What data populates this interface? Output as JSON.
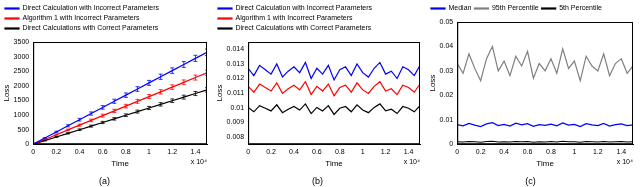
{
  "chart_data": [
    {
      "type": "line",
      "title": "(a)",
      "x_label": "Time",
      "y_label": "Loss",
      "annotations": [
        "x 10⁴"
      ],
      "grid": false,
      "legend": "top",
      "xlim": [
        0,
        1.5
      ],
      "xticks": [
        0,
        0.2,
        0.4,
        0.6,
        0.8,
        1,
        1.2,
        1.4
      ],
      "ylim": [
        0,
        3500
      ],
      "yticks": [
        0,
        500,
        1000,
        1500,
        2000,
        2500,
        3000,
        3500
      ],
      "x": [
        0,
        0.1,
        0.2,
        0.3,
        0.4,
        0.5,
        0.6,
        0.7,
        0.8,
        0.9,
        1,
        1.1,
        1.2,
        1.3,
        1.4,
        1.5
      ],
      "series": [
        {
          "name": "Direct Calculation with Incorrect Parameters",
          "color": "#0000ff",
          "values": [
            0,
            210,
            420,
            630,
            840,
            1050,
            1260,
            1470,
            1680,
            1890,
            2100,
            2310,
            2520,
            2730,
            2940,
            3150
          ],
          "errors": [
            0,
            15,
            25,
            35,
            45,
            55,
            60,
            70,
            75,
            80,
            85,
            90,
            95,
            100,
            105,
            110
          ]
        },
        {
          "name": "Algorithm 1 with Incorrect Parameters",
          "color": "#ff0000",
          "values": [
            0,
            163,
            326,
            489,
            652,
            815,
            978,
            1141,
            1304,
            1467,
            1630,
            1793,
            1956,
            2119,
            2282,
            2445
          ],
          "errors": [
            0,
            12,
            20,
            28,
            36,
            44,
            50,
            56,
            62,
            66,
            70,
            74,
            78,
            82,
            86,
            90
          ]
        },
        {
          "name": "Direct Calculations with Correct Parameters",
          "color": "#000000",
          "values": [
            0,
            124,
            248,
            372,
            496,
            620,
            744,
            868,
            992,
            1116,
            1240,
            1364,
            1488,
            1612,
            1736,
            1860
          ],
          "errors": [
            0,
            10,
            16,
            22,
            28,
            34,
            38,
            42,
            46,
            50,
            54,
            58,
            62,
            66,
            70,
            74
          ]
        }
      ]
    },
    {
      "type": "line",
      "title": "(b)",
      "x_label": "Time",
      "y_label": "Loss",
      "annotations": [
        "x 10⁴"
      ],
      "grid": false,
      "legend": "top",
      "xlim": [
        0,
        1.5
      ],
      "xticks": [
        0,
        0.2,
        0.4,
        0.6,
        0.8,
        1,
        1.2,
        1.4
      ],
      "ylim": [
        0.0075,
        0.0145
      ],
      "yticks": [
        0.008,
        0.009,
        0.01,
        0.011,
        0.012,
        0.013,
        0.014
      ],
      "x": [
        0,
        0.05,
        0.1,
        0.15,
        0.2,
        0.25,
        0.3,
        0.35,
        0.4,
        0.45,
        0.5,
        0.55,
        0.6,
        0.65,
        0.7,
        0.75,
        0.8,
        0.85,
        0.9,
        0.95,
        1,
        1.05,
        1.1,
        1.15,
        1.2,
        1.25,
        1.3,
        1.35,
        1.4,
        1.45,
        1.5
      ],
      "series": [
        {
          "name": "Direct Calculation with Incorrect Parameters",
          "color": "#0000ff",
          "values": [
            0.0127,
            0.0122,
            0.0129,
            0.0126,
            0.0123,
            0.013,
            0.0121,
            0.0125,
            0.0128,
            0.0124,
            0.0131,
            0.012,
            0.0127,
            0.0123,
            0.0129,
            0.0119,
            0.0126,
            0.0128,
            0.0122,
            0.013,
            0.0124,
            0.0121,
            0.0127,
            0.0131,
            0.0123,
            0.0125,
            0.012,
            0.0128,
            0.0126,
            0.0122,
            0.0129
          ]
        },
        {
          "name": "Algorithm 1 with Incorrect Parameters",
          "color": "#ff0000",
          "values": [
            0.01146,
            0.01106,
            0.01162,
            0.01138,
            0.01114,
            0.0117,
            0.01098,
            0.0113,
            0.01154,
            0.01122,
            0.01178,
            0.0109,
            0.01146,
            0.01114,
            0.01162,
            0.01082,
            0.01138,
            0.01154,
            0.01106,
            0.0117,
            0.01122,
            0.01098,
            0.01146,
            0.01178,
            0.01114,
            0.0113,
            0.0109,
            0.01154,
            0.01138,
            0.01106,
            0.01162
          ]
        },
        {
          "name": "Direct Calculations with Correct Parameters",
          "color": "#000000",
          "values": [
            0.01002,
            0.00972,
            0.01014,
            0.00996,
            0.00978,
            0.0102,
            0.00966,
            0.0099,
            0.01008,
            0.00984,
            0.01026,
            0.0096,
            0.01002,
            0.00978,
            0.01014,
            0.00954,
            0.00996,
            0.01008,
            0.00972,
            0.0102,
            0.00984,
            0.00966,
            0.01002,
            0.01026,
            0.00978,
            0.0099,
            0.0096,
            0.01008,
            0.00996,
            0.00972,
            0.01014
          ]
        }
      ]
    },
    {
      "type": "line",
      "title": "(c)",
      "x_label": "Time",
      "y_label": "Loss",
      "annotations": [
        "x 10⁴"
      ],
      "grid": false,
      "legend": "top",
      "xlim": [
        0,
        1.5
      ],
      "xticks": [
        0,
        0.2,
        0.4,
        0.6,
        0.8,
        1,
        1.2,
        1.4
      ],
      "ylim": [
        0,
        0.05
      ],
      "yticks": [
        0,
        0.01,
        0.02,
        0.03,
        0.04,
        0.05
      ],
      "x": [
        0,
        0.05,
        0.1,
        0.15,
        0.2,
        0.25,
        0.3,
        0.35,
        0.4,
        0.45,
        0.5,
        0.55,
        0.6,
        0.65,
        0.7,
        0.75,
        0.8,
        0.85,
        0.9,
        0.95,
        1,
        1.05,
        1.1,
        1.15,
        1.2,
        1.25,
        1.3,
        1.35,
        1.4,
        1.45,
        1.5
      ],
      "series": [
        {
          "name": "Median",
          "color": "#0000ff",
          "values": [
            0.008,
            0.0075,
            0.0085,
            0.0078,
            0.0072,
            0.0083,
            0.0088,
            0.0076,
            0.0081,
            0.0074,
            0.0086,
            0.0079,
            0.0084,
            0.0073,
            0.008,
            0.0077,
            0.0082,
            0.0075,
            0.0087,
            0.0078,
            0.0081,
            0.0072,
            0.0084,
            0.0079,
            0.0076,
            0.0085,
            0.0074,
            0.008,
            0.0083,
            0.0076,
            0.0079
          ]
        },
        {
          "name": "95th Percentile",
          "color": "#808080",
          "values": [
            0.033,
            0.029,
            0.037,
            0.031,
            0.026,
            0.035,
            0.04,
            0.03,
            0.034,
            0.028,
            0.036,
            0.032,
            0.038,
            0.027,
            0.033,
            0.03,
            0.035,
            0.029,
            0.039,
            0.031,
            0.034,
            0.026,
            0.036,
            0.032,
            0.03,
            0.037,
            0.028,
            0.033,
            0.035,
            0.029,
            0.032
          ]
        },
        {
          "name": "5th Percentile",
          "color": "#000000",
          "values": [
            0.001,
            0.0009,
            0.0011,
            0.001,
            0.0008,
            0.0011,
            0.0012,
            0.0009,
            0.001,
            0.0009,
            0.0011,
            0.001,
            0.0011,
            0.0008,
            0.001,
            0.0009,
            0.0011,
            0.0009,
            0.0012,
            0.001,
            0.001,
            0.0008,
            0.0011,
            0.001,
            0.0009,
            0.0011,
            0.0009,
            0.001,
            0.0011,
            0.0009,
            0.001
          ]
        }
      ]
    }
  ]
}
